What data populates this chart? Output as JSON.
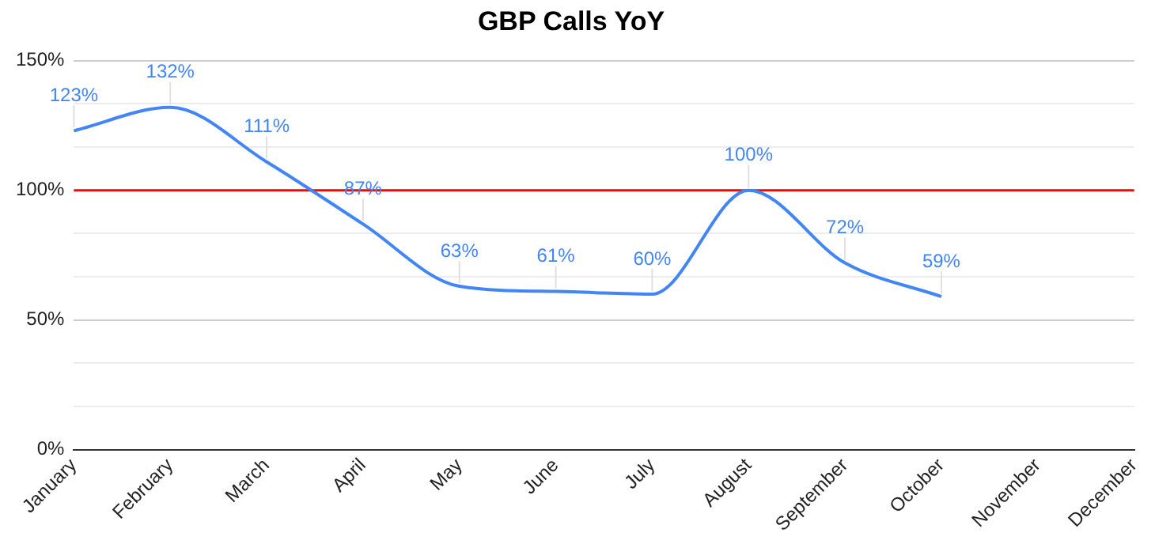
{
  "chart_data": {
    "type": "line",
    "title": "GBP Calls YoY",
    "categories": [
      "January",
      "February",
      "March",
      "April",
      "May",
      "June",
      "July",
      "August",
      "September",
      "October",
      "November",
      "December"
    ],
    "series": [
      {
        "color": "#4285f4",
        "values": [
          123,
          132,
          111,
          87,
          63,
          61,
          60,
          100,
          72,
          59,
          null,
          null
        ],
        "value_labels": [
          "123%",
          "132%",
          "111%",
          "87%",
          "63%",
          "61%",
          "60%",
          "100%",
          "72%",
          "59%",
          null,
          null
        ]
      }
    ],
    "ylim": [
      0,
      150
    ],
    "yticks": [
      {
        "value": 0,
        "label": "0%"
      },
      {
        "value": 16.67,
        "label": null
      },
      {
        "value": 33.33,
        "label": null
      },
      {
        "value": 50,
        "label": "50%"
      },
      {
        "value": 66.67,
        "label": null
      },
      {
        "value": 83.33,
        "label": null
      },
      {
        "value": 100,
        "label": "100%"
      },
      {
        "value": 116.67,
        "label": null
      },
      {
        "value": 133.33,
        "label": null
      },
      {
        "value": 150,
        "label": "150%"
      }
    ],
    "ref_lines": [
      {
        "axis": "y",
        "value": 100,
        "color": "#ff0000"
      }
    ],
    "grid": "y",
    "legend": false,
    "marker": "none",
    "line_style": "solid"
  }
}
